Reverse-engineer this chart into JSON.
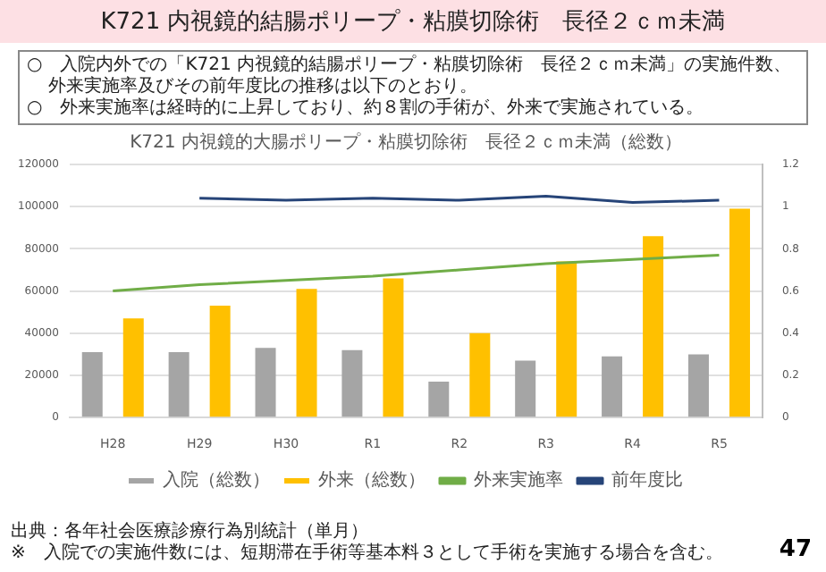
{
  "chart_data": {
    "type": "bar",
    "title": "K721 内視鏡的結腸ポリープ・粘膜切除術　長径２ｃｍ未満",
    "subtitle": "K721 内視鏡的大腸ポリープ・粘膜切除術　長径２ｃｍ未満（総数）",
    "categories": [
      "H28",
      "H29",
      "H30",
      "R1",
      "R2",
      "R3",
      "R4",
      "R5"
    ],
    "series": [
      {
        "name": "入院（総数）",
        "color": "#a5a5a5",
        "values": [
          31000,
          31000,
          33000,
          32000,
          17000,
          27000,
          29000,
          30000
        ]
      },
      {
        "name": "外来（総数）",
        "color": "#ffc000",
        "values": [
          47000,
          53000,
          61000,
          66000,
          40000,
          74000,
          86000,
          99000
        ]
      },
      {
        "name": "外来実施率",
        "type": "line",
        "axis": "y2",
        "color": "#70ad47",
        "values": [
          0.6,
          0.63,
          0.65,
          0.67,
          0.7,
          0.73,
          0.75,
          0.77
        ]
      },
      {
        "name": "前年度比",
        "type": "line",
        "axis": "y2",
        "color": "#264478",
        "values": [
          null,
          1.04,
          1.03,
          1.04,
          1.03,
          1.05,
          1.02,
          1.03
        ]
      }
    ],
    "ylim": [
      0,
      120000
    ],
    "yticks": [
      0,
      20000,
      40000,
      60000,
      80000,
      100000,
      120000
    ],
    "y2lim": [
      0,
      1.2
    ],
    "y2ticks": [
      0,
      0.2,
      0.4,
      0.6,
      0.8,
      1,
      1.2
    ],
    "grid": "y",
    "legend": "bottom",
    "marker": "none",
    "line_style": "solid",
    "annotations": [
      "○　入院内外での「K721 内視鏡的結腸ポリープ・粘膜切除術　長径２ｃｍ未満」の実施件数、外来実施率及びその前年度比の推移は以下のとおり。",
      "○　外来実施率は経時的に上昇しており、約８割の手術が、外来で実施されている。",
      "出典：各年社会医療診療行為別統計（単月）",
      "※　入院での実施件数には、短期滞在手術等基本料３として手術を実施する場合を含む。",
      "47"
    ]
  }
}
